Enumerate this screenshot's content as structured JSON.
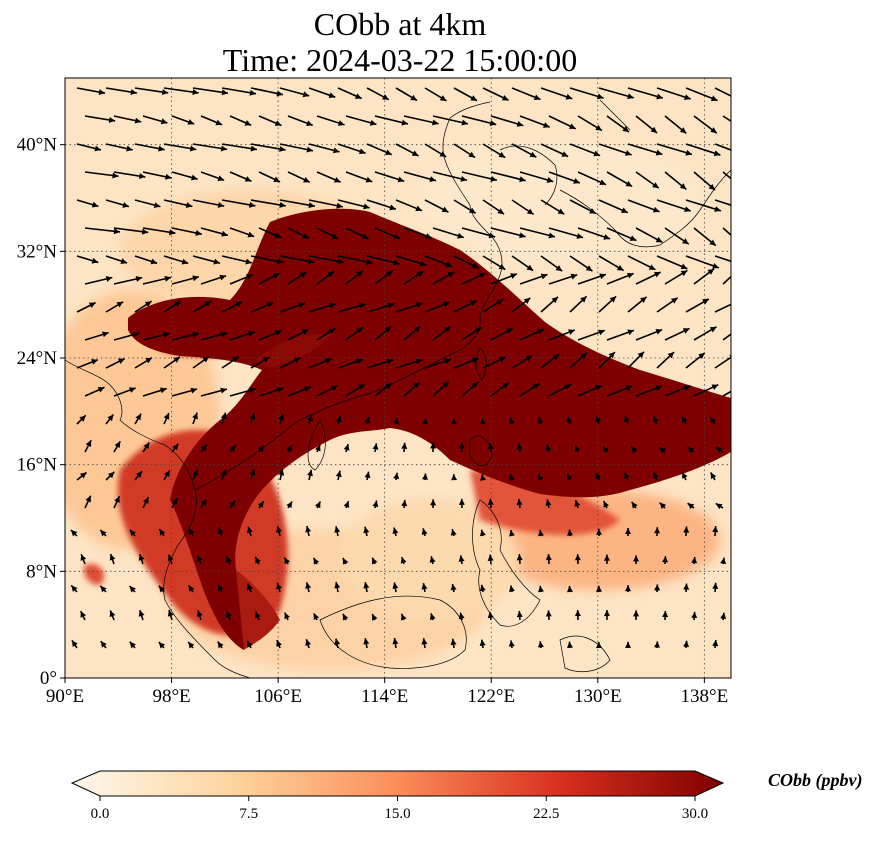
{
  "title": {
    "line1": "CObb at 4km",
    "line2": "Time: 2024-03-22 15:00:00"
  },
  "map": {
    "lon_range": [
      90,
      140
    ],
    "lat_range": [
      0,
      45
    ],
    "lon_ticks": [
      {
        "value": 90,
        "label": "90°E"
      },
      {
        "value": 98,
        "label": "98°E"
      },
      {
        "value": 106,
        "label": "106°E"
      },
      {
        "value": 114,
        "label": "114°E"
      },
      {
        "value": 122,
        "label": "122°E"
      },
      {
        "value": 130,
        "label": "130°E"
      },
      {
        "value": 138,
        "label": "138°E"
      }
    ],
    "lat_ticks": [
      {
        "value": 0,
        "label": "0°"
      },
      {
        "value": 8,
        "label": "8°N"
      },
      {
        "value": 16,
        "label": "16°N"
      },
      {
        "value": 24,
        "label": "24°N"
      },
      {
        "value": 32,
        "label": "32°N"
      },
      {
        "value": 40,
        "label": "40°N"
      }
    ],
    "gridlines": "dotted",
    "field": "CObb",
    "overlay": "wind vectors"
  },
  "colorbar": {
    "label": "CObb (ppbv)",
    "min": 0.0,
    "max": 30.0,
    "ticks": [
      "0.0",
      "7.5",
      "15.0",
      "22.5",
      "30.0"
    ],
    "extend": "both",
    "colormap": "OrRd",
    "colors": [
      "#fff7ec",
      "#fdd49e",
      "#fc8d59",
      "#d7301f",
      "#7f0000"
    ]
  }
}
